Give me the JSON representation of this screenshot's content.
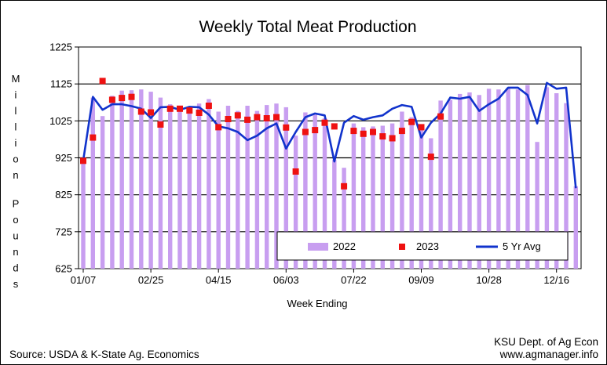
{
  "chart_data": {
    "type": "bar",
    "title": "Weekly Total Meat Production",
    "ylabel": "Million Pounds",
    "xlabel": "Week Ending",
    "ylim": [
      625,
      1225
    ],
    "y_ticks": [
      625,
      725,
      825,
      925,
      1025,
      1125,
      1225
    ],
    "x_tick_labels": [
      {
        "week": 1,
        "label": "01/07"
      },
      {
        "week": 8,
        "label": "02/25"
      },
      {
        "week": 15,
        "label": "04/15"
      },
      {
        "week": 22,
        "label": "06/03"
      },
      {
        "week": 29,
        "label": "07/22"
      },
      {
        "week": 36,
        "label": "09/09"
      },
      {
        "week": 43,
        "label": "10/28"
      },
      {
        "week": 50,
        "label": "12/16"
      }
    ],
    "grid": "horizontal",
    "legend_position": "bottom-right inside plot",
    "colors": {
      "bars": "#c89ef0",
      "markers": "#ee1111",
      "line": "#1133cc"
    },
    "series": [
      {
        "name": "2022",
        "type": "bar",
        "values": [
          920,
          1088,
          1038,
          1093,
          1107,
          1108,
          1110,
          1104,
          1088,
          1070,
          1062,
          1058,
          1072,
          1084,
          1050,
          1066,
          1052,
          1066,
          1052,
          1068,
          1072,
          1062,
          985,
          1048,
          1042,
          1032,
          920,
          898,
          1018,
          1008,
          1010,
          1012,
          1018,
          1050,
          1035,
          1000,
          978,
          1080,
          1082,
          1098,
          1102,
          1095,
          1112,
          1110,
          1115,
          1110,
          1122,
          968,
          1116,
          1100,
          1073,
          848
        ]
      },
      {
        "name": "2023",
        "type": "markers",
        "values": [
          917,
          980,
          1133,
          1082,
          1087,
          1090,
          1050,
          1048,
          1015,
          1058,
          1058,
          1053,
          1047,
          1066,
          1008,
          1030,
          1040,
          1028,
          1035,
          1032,
          1035,
          1007,
          888,
          995,
          1000,
          1020,
          1010,
          848,
          998,
          990,
          995,
          983,
          978,
          998,
          1022,
          1008,
          928,
          1037
        ]
      },
      {
        "name": "5 Yr Avg",
        "type": "line",
        "values": [
          918,
          1090,
          1055,
          1070,
          1070,
          1065,
          1058,
          1033,
          1062,
          1063,
          1055,
          1063,
          1062,
          1042,
          1010,
          1005,
          995,
          973,
          985,
          1005,
          1018,
          950,
          995,
          1035,
          1045,
          1040,
          915,
          1020,
          1038,
          1028,
          1035,
          1040,
          1058,
          1068,
          1063,
          980,
          1020,
          1045,
          1088,
          1085,
          1090,
          1052,
          1070,
          1085,
          1115,
          1115,
          1095,
          1018,
          1128,
          1112,
          1115,
          843
        ]
      }
    ]
  },
  "footer": {
    "source": "Source:  USDA & K-State Ag. Economics",
    "dept": "KSU Dept. of Ag Econ",
    "site": "www.agmanager.info"
  }
}
